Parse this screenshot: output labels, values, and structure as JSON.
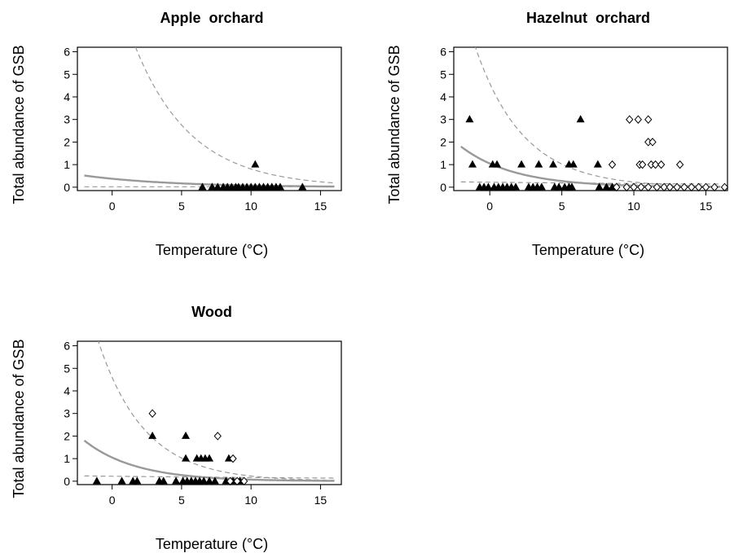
{
  "chart_data": [
    {
      "type": "scatter",
      "title": "Apple  orchard",
      "xlabel": "Temperature (°C)",
      "ylabel": "Total abundance of GSB",
      "xlim": [
        -2.5,
        16.5
      ],
      "ylim": [
        -0.15,
        6.2
      ],
      "xticks": [
        "0",
        "5",
        "10",
        "15"
      ],
      "yticks": [
        "0",
        "1",
        "2",
        "3",
        "4",
        "5",
        "6"
      ],
      "grid": false,
      "curves": {
        "mean": {
          "color": "#999999",
          "style": "solid",
          "a": 0.375,
          "k": 0.16
        },
        "upper": {
          "color": "#999999",
          "style": "dashed",
          "a": 9.37,
          "k": 0.245
        },
        "lower": {
          "color": "#999999",
          "style": "dashed",
          "a": 0.02,
          "k": 0.0
        }
      },
      "series": [
        {
          "marker": "filled-triangle",
          "points": [
            [
              6.5,
              0
            ],
            [
              7.2,
              0
            ],
            [
              7.6,
              0
            ],
            [
              8.0,
              0
            ],
            [
              8.3,
              0
            ],
            [
              8.6,
              0
            ],
            [
              8.9,
              0
            ],
            [
              9.1,
              0
            ],
            [
              9.4,
              0
            ],
            [
              9.7,
              0
            ],
            [
              10.0,
              0
            ],
            [
              10.3,
              0
            ],
            [
              10.6,
              0
            ],
            [
              10.9,
              0
            ],
            [
              11.2,
              0
            ],
            [
              11.5,
              0
            ],
            [
              11.8,
              0
            ],
            [
              12.1,
              0
            ],
            [
              13.7,
              0
            ],
            [
              10.3,
              1
            ]
          ]
        }
      ]
    },
    {
      "type": "scatter",
      "title": "Hazelnut  orchard",
      "xlabel": "Temperature (°C)",
      "ylabel": "Total abundance of GSB",
      "xlim": [
        -2.5,
        16.5
      ],
      "ylim": [
        -0.15,
        6.2
      ],
      "xticks": [
        "0",
        "5",
        "10",
        "15"
      ],
      "yticks": [
        "0",
        "1",
        "2",
        "3",
        "4",
        "5",
        "6"
      ],
      "grid": false,
      "curves": {
        "mean": {
          "color": "#999999",
          "style": "solid",
          "a": 1.05,
          "k": 0.27
        },
        "upper": {
          "color": "#999999",
          "style": "dashed",
          "a": 4.6,
          "k": 0.3
        },
        "lower": {
          "color": "#999999",
          "style": "dashed",
          "a": 0.22,
          "k": 0.03
        }
      },
      "series": [
        {
          "marker": "filled-triangle",
          "points": [
            [
              -1.4,
              3
            ],
            [
              -1.2,
              1
            ],
            [
              -0.7,
              0
            ],
            [
              -0.4,
              0
            ],
            [
              -0.1,
              0
            ],
            [
              0.3,
              0
            ],
            [
              0.6,
              0
            ],
            [
              0.9,
              0
            ],
            [
              1.2,
              0
            ],
            [
              1.5,
              0
            ],
            [
              1.8,
              0
            ],
            [
              2.7,
              0
            ],
            [
              3.0,
              0
            ],
            [
              3.3,
              0
            ],
            [
              3.6,
              0
            ],
            [
              4.5,
              0
            ],
            [
              4.8,
              0
            ],
            [
              5.2,
              0
            ],
            [
              5.5,
              0
            ],
            [
              5.7,
              0
            ],
            [
              7.6,
              0
            ],
            [
              8.1,
              0
            ],
            [
              8.5,
              0
            ],
            [
              0.2,
              1
            ],
            [
              0.5,
              1
            ],
            [
              2.2,
              1
            ],
            [
              3.4,
              1
            ],
            [
              4.4,
              1
            ],
            [
              5.5,
              1
            ],
            [
              5.8,
              1
            ],
            [
              7.5,
              1
            ],
            [
              6.3,
              3
            ]
          ]
        },
        {
          "marker": "open-diamond",
          "points": [
            [
              8.5,
              1
            ],
            [
              9.7,
              3
            ],
            [
              10.3,
              3
            ],
            [
              11.0,
              3
            ],
            [
              10.4,
              1
            ],
            [
              10.6,
              1
            ],
            [
              11.0,
              2
            ],
            [
              11.3,
              2
            ],
            [
              11.2,
              1
            ],
            [
              11.5,
              1
            ],
            [
              11.9,
              1
            ],
            [
              13.2,
              1
            ],
            [
              8.8,
              0
            ],
            [
              9.5,
              0
            ],
            [
              10.0,
              0
            ],
            [
              10.5,
              0
            ],
            [
              11.0,
              0
            ],
            [
              11.6,
              0
            ],
            [
              12.1,
              0
            ],
            [
              12.5,
              0
            ],
            [
              13.0,
              0
            ],
            [
              13.5,
              0
            ],
            [
              14.0,
              0
            ],
            [
              14.5,
              0
            ],
            [
              15.0,
              0
            ],
            [
              15.6,
              0
            ],
            [
              16.3,
              0
            ]
          ]
        }
      ]
    },
    {
      "type": "scatter",
      "title": "Wood",
      "xlabel": "Temperature (°C)",
      "ylabel": "Total abundance of GSB",
      "xlim": [
        -2.5,
        16.5
      ],
      "ylim": [
        -0.15,
        6.2
      ],
      "xticks": [
        "0",
        "5",
        "10",
        "15"
      ],
      "yticks": [
        "0",
        "1",
        "2",
        "3",
        "4",
        "5",
        "6"
      ],
      "grid": false,
      "curves": {
        "mean": {
          "color": "#999999",
          "style": "solid",
          "a": 1.05,
          "k": 0.27
        },
        "upper": {
          "color": "#999999",
          "style": "dashed",
          "a": 4.6,
          "k": 0.3
        },
        "lower": {
          "color": "#999999",
          "style": "dashed",
          "a": 0.22,
          "k": 0.03
        }
      },
      "series": [
        {
          "marker": "filled-triangle",
          "points": [
            [
              -1.1,
              0
            ],
            [
              0.7,
              0
            ],
            [
              1.5,
              0
            ],
            [
              1.8,
              0
            ],
            [
              3.4,
              0
            ],
            [
              3.7,
              0
            ],
            [
              4.6,
              0
            ],
            [
              5.1,
              0
            ],
            [
              5.4,
              0
            ],
            [
              5.7,
              0
            ],
            [
              6.0,
              0
            ],
            [
              6.3,
              0
            ],
            [
              6.6,
              0
            ],
            [
              7.0,
              0
            ],
            [
              7.4,
              0
            ],
            [
              8.2,
              0
            ],
            [
              8.7,
              0
            ],
            [
              9.2,
              0
            ],
            [
              2.9,
              2
            ],
            [
              5.3,
              2
            ],
            [
              5.3,
              1
            ],
            [
              6.1,
              1
            ],
            [
              6.4,
              1
            ],
            [
              6.7,
              1
            ],
            [
              7.0,
              1
            ],
            [
              8.4,
              1
            ]
          ]
        },
        {
          "marker": "open-diamond",
          "points": [
            [
              2.9,
              3
            ],
            [
              7.6,
              2
            ],
            [
              8.7,
              1
            ],
            [
              8.5,
              0
            ],
            [
              9.0,
              0
            ],
            [
              9.5,
              0
            ]
          ]
        }
      ]
    }
  ]
}
